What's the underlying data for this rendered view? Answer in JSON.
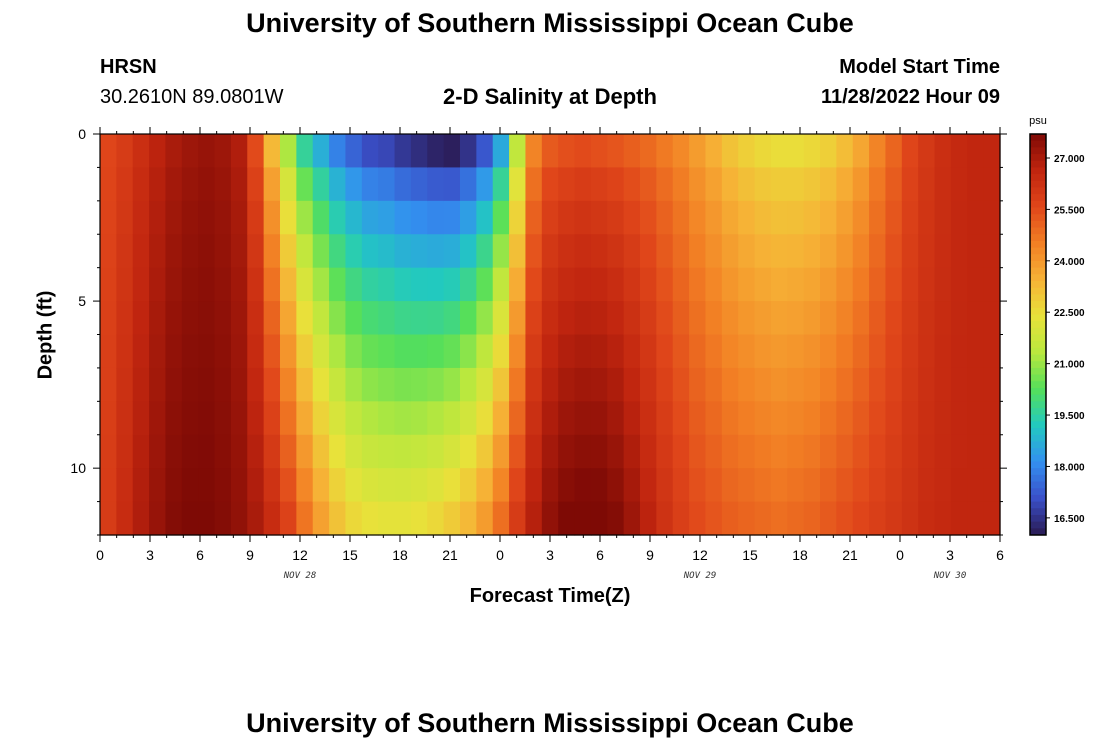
{
  "page": {
    "title": "University of Southern Mississippi Ocean Cube",
    "station": "HRSN",
    "coords": "30.2610N  89.0801W",
    "plot_title": "2-D Salinity at Depth",
    "model_label": "Model Start Time",
    "model_time": "11/28/2022 Hour 09",
    "footer_title": "University of Southern Mississippi Ocean Cube"
  },
  "chart_data": {
    "type": "heatmap",
    "title": "2-D Salinity at Depth",
    "xlabel": "Forecast Time(Z)",
    "ylabel": "Depth (ft)",
    "x_tick_labels": [
      "0",
      "3",
      "6",
      "9",
      "12",
      "15",
      "18",
      "21",
      "0",
      "3",
      "6",
      "9",
      "12",
      "15",
      "18",
      "21",
      "0",
      "3",
      "6"
    ],
    "x_date_labels": [
      {
        "label": "NOV 28",
        "hour_index": 12
      },
      {
        "label": "NOV 29",
        "hour_index": 36
      },
      {
        "label": "NOV 30",
        "hour_index": 51
      }
    ],
    "x_range_hours": [
      0,
      54
    ],
    "y_ticks": [
      0,
      5,
      10
    ],
    "ylim": [
      0,
      12
    ],
    "y_reversed": true,
    "colorbar": {
      "unit": "psu",
      "min": 16.0,
      "max": 27.7,
      "ticks": [
        "27.000",
        "25.500",
        "24.000",
        "22.500",
        "21.000",
        "19.500",
        "18.000",
        "16.500"
      ],
      "tick_values": [
        27.0,
        25.5,
        24.0,
        22.5,
        21.0,
        19.5,
        18.0,
        16.5
      ]
    },
    "colormap": [
      "#2a1a52",
      "#3a4fc8",
      "#3390f0",
      "#22c9c0",
      "#55df5a",
      "#b9e83e",
      "#e8e23a",
      "#f6b236",
      "#f27f24",
      "#e0461a",
      "#c0250f",
      "#7e0a05"
    ],
    "surface_salinity_by_hour": [
      25.6,
      25.9,
      26.3,
      26.7,
      27.0,
      27.2,
      27.3,
      27.2,
      26.9,
      25.5,
      23.3,
      21.2,
      19.6,
      18.7,
      17.9,
      17.4,
      17.0,
      16.9,
      16.6,
      16.4,
      16.2,
      16.1,
      16.5,
      17.2,
      18.6,
      21.5,
      24.4,
      25.2,
      25.4,
      25.5,
      25.4,
      25.3,
      25.1,
      24.9,
      24.6,
      24.3,
      23.9,
      23.5,
      23.1,
      22.8,
      22.6,
      22.5,
      22.5,
      22.6,
      22.8,
      23.2,
      23.7,
      24.4,
      25.0,
      25.6,
      26.0,
      26.3,
      26.5,
      26.6,
      26.6
    ],
    "bottom_salinity_by_hour": [
      25.9,
      26.4,
      26.9,
      27.3,
      27.6,
      27.7,
      27.7,
      27.6,
      27.4,
      27.0,
      26.4,
      25.7,
      24.7,
      23.8,
      23.1,
      22.6,
      22.4,
      22.3,
      22.3,
      22.4,
      22.6,
      22.9,
      23.3,
      23.9,
      24.8,
      25.9,
      26.8,
      27.4,
      27.7,
      27.8,
      27.8,
      27.6,
      27.2,
      26.7,
      26.2,
      25.8,
      25.5,
      25.3,
      25.1,
      25.0,
      24.9,
      24.8,
      24.9,
      25.0,
      25.2,
      25.4,
      25.6,
      25.8,
      26.0,
      26.2,
      26.4,
      26.5,
      26.6,
      26.6,
      26.6
    ],
    "depth_levels": 12
  }
}
